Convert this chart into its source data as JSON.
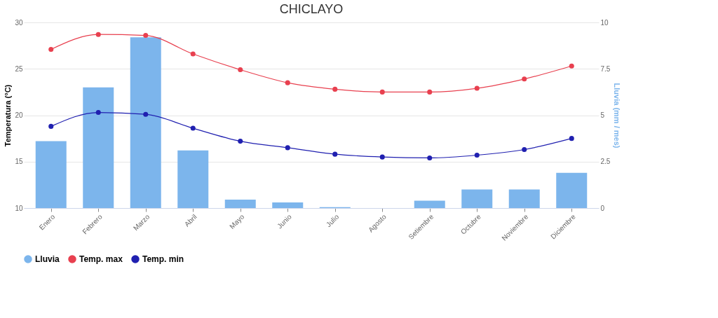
{
  "chart_data": {
    "type": "bar",
    "title": "CHICLAYO",
    "ylabel": "Temperatura (°C)",
    "y2label": "Lluvia (mm / mes)",
    "categories": [
      "Enero",
      "Febrero",
      "Marzo",
      "Abril",
      "Mayo",
      "Junio",
      "Julio",
      "Agosto",
      "Setiembre",
      "Octubre",
      "Noviembre",
      "Diciembre"
    ],
    "series": [
      {
        "name": "Lluvia",
        "axis": "y2",
        "color": "#7cb5ec",
        "values": [
          3.6,
          6.5,
          9.2,
          3.1,
          0.45,
          0.3,
          0.05,
          0,
          0.4,
          1.0,
          1.0,
          1.9
        ]
      },
      {
        "name": "Temp. max",
        "type": "line",
        "color": "#e8404f",
        "values": [
          27.1,
          28.7,
          28.6,
          26.6,
          24.9,
          23.5,
          22.8,
          22.5,
          22.5,
          22.9,
          23.9,
          25.3
        ]
      },
      {
        "name": "Temp. min",
        "type": "line",
        "color": "#2020b0",
        "values": [
          18.8,
          20.3,
          20.1,
          18.6,
          17.2,
          16.5,
          15.8,
          15.5,
          15.4,
          15.7,
          16.3,
          17.5
        ]
      }
    ],
    "ylim": [
      10,
      30
    ],
    "yticks": [
      10,
      15,
      20,
      25,
      30
    ],
    "y2lim": [
      0,
      10
    ],
    "y2ticks": [
      0,
      2.5,
      5,
      7.5,
      10
    ],
    "grid": "y",
    "legend": "bottom",
    "marker": "circle",
    "line_style": "solid"
  }
}
